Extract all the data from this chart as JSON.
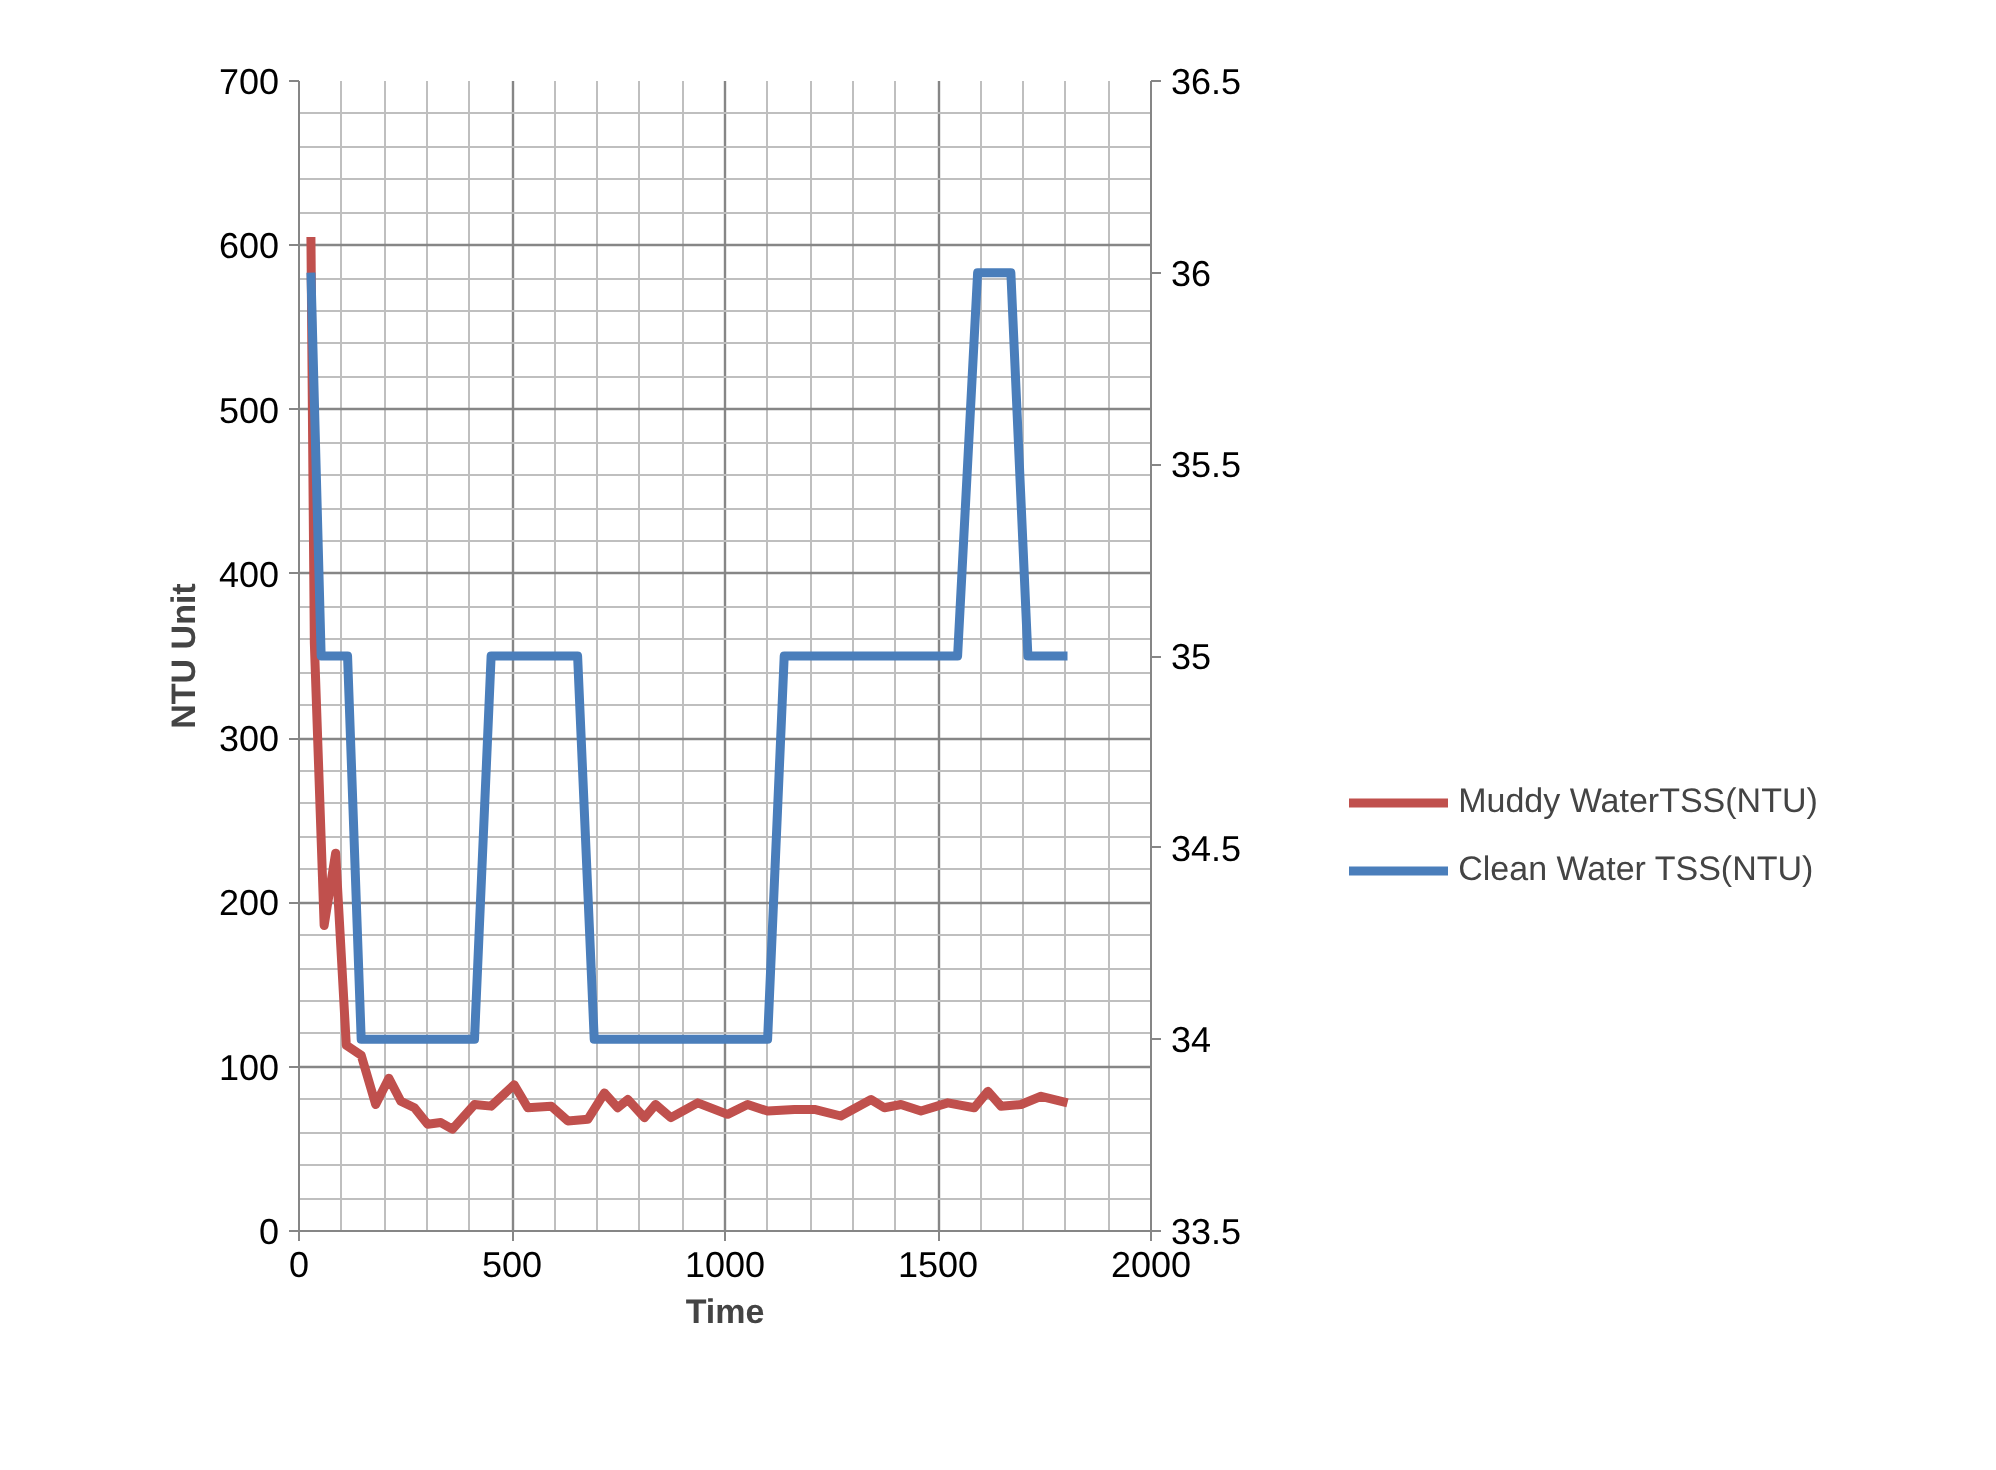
{
  "chart_data": {
    "type": "line",
    "xlabel": "Time",
    "ylabel": "NTU Unit",
    "xlim": [
      0,
      2000
    ],
    "xticks": [
      0,
      500,
      1000,
      1500,
      2000
    ],
    "ylim": [
      0,
      700
    ],
    "yticks": [
      0,
      100,
      200,
      300,
      400,
      500,
      600,
      700
    ],
    "y2lim": [
      33.5,
      36.5
    ],
    "y2ticks": [
      33.5,
      34,
      34.5,
      35,
      35.5,
      36,
      36.5
    ],
    "grid": true,
    "legend": "right",
    "marker": "none",
    "line_style": "solid",
    "series": [
      {
        "name": "Muddy WaterTSS(NTU)",
        "color": "#c0504d",
        "x": [
          28,
          36,
          59,
          86,
          111,
          146,
          180,
          211,
          239,
          271,
          302,
          333,
          360,
          412,
          451,
          505,
          537,
          592,
          631,
          678,
          717,
          748,
          772,
          811,
          837,
          873,
          936,
          1006,
          1053,
          1100,
          1163,
          1210,
          1272,
          1343,
          1374,
          1413,
          1460,
          1523,
          1585,
          1617,
          1648,
          1695,
          1742,
          1804
        ],
        "values": [
          605,
          358,
          186,
          230,
          113,
          107,
          77,
          93,
          79,
          75,
          65,
          66,
          62,
          77,
          76,
          89,
          75,
          76,
          67,
          68,
          84,
          75,
          80,
          69,
          77,
          69,
          78,
          71,
          77,
          73,
          74,
          74,
          70,
          80,
          75,
          77,
          73,
          78,
          75,
          85,
          76,
          77,
          82,
          78
        ]
      },
      {
        "name": "Clean Water TSS(NTU)",
        "color": "#4a7ebb",
        "axis": "y2",
        "x": [
          28,
          52,
          114,
          146,
          412,
          451,
          654,
          693,
          1100,
          1139,
          1546,
          1593,
          1632,
          1671,
          1711,
          1804
        ],
        "values": [
          36,
          35,
          35,
          34,
          34,
          35,
          35,
          34,
          34,
          35,
          35,
          36,
          36,
          36,
          35,
          35
        ]
      }
    ]
  }
}
